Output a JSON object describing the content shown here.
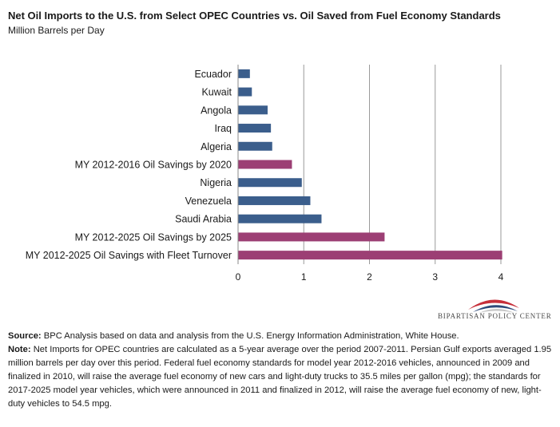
{
  "header": {
    "title": "Net Oil Imports to the U.S. from Select OPEC Countries vs. Oil Saved from Fuel Economy Standards",
    "subtitle": "Million Barrels per Day"
  },
  "colors": {
    "country": "#3b5e8c",
    "savings": "#9c3f74",
    "axis": "#888888",
    "grid": "#9a9a9a",
    "text": "#1a1a1a"
  },
  "chart_data": {
    "type": "bar",
    "orientation": "horizontal",
    "xlim": [
      0,
      4
    ],
    "xticks": [
      0,
      1,
      2,
      3,
      4
    ],
    "grid": "vertical",
    "legend": "none",
    "bars": [
      {
        "label": "Ecuador",
        "value": 0.18,
        "kind": "country"
      },
      {
        "label": "Kuwait",
        "value": 0.21,
        "kind": "country"
      },
      {
        "label": "Angola",
        "value": 0.45,
        "kind": "country"
      },
      {
        "label": "Iraq",
        "value": 0.5,
        "kind": "country"
      },
      {
        "label": "Algeria",
        "value": 0.52,
        "kind": "country"
      },
      {
        "label": "MY 2012-2016 Oil Savings by 2020",
        "value": 0.82,
        "kind": "savings"
      },
      {
        "label": "Nigeria",
        "value": 0.97,
        "kind": "country"
      },
      {
        "label": "Venezuela",
        "value": 1.1,
        "kind": "country"
      },
      {
        "label": "Saudi Arabia",
        "value": 1.27,
        "kind": "country"
      },
      {
        "label": "MY 2012-2025 Oil Savings by 2025",
        "value": 2.23,
        "kind": "savings"
      },
      {
        "label": "MY 2012-2025 Oil Savings with Fleet Turnover",
        "value": 4.02,
        "kind": "savings"
      }
    ]
  },
  "logo": {
    "text": "BIPARTISAN POLICY CENTER",
    "colors": [
      "#c62f3a",
      "#2e4a7a",
      "#c7c7c7"
    ]
  },
  "notes": {
    "source_label": "Source:",
    "source_text": " BPC Analysis based on data and analysis from the U.S. Energy Information Administration, White House.",
    "note_label": "Note:",
    "note_text": " Net Imports for OPEC countries are calculated as a 5-year average over the period 2007-2011. Persian Gulf exports averaged 1.95 million barrels per day over this period. Federal fuel economy standards for model year 2012-2016 vehicles, announced in 2009 and finalized in 2010, will raise the average fuel economy of new cars and light-duty trucks to 35.5 miles per gallon (mpg); the standards for 2017-2025 model year vehicles, which were announced in 2011 and finalized in 2012, will raise the average fuel economy of new, light-duty vehicles to 54.5 mpg."
  }
}
